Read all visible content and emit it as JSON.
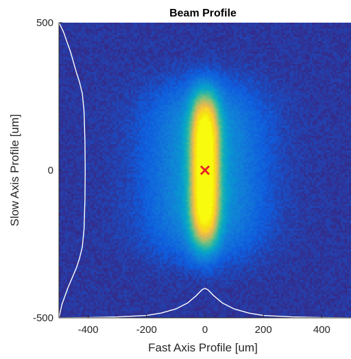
{
  "chart_data": {
    "type": "heatmap",
    "title": "Beam Profile",
    "xlabel": "Fast Axis Profile [um]",
    "ylabel": "Slow Axis Profile [um]",
    "xlim": [
      -500,
      500
    ],
    "ylim": [
      -500,
      500
    ],
    "x_ticks": [
      -400,
      -200,
      0,
      200,
      400
    ],
    "y_ticks": [
      -500,
      0,
      500
    ],
    "x_tick_labels": [
      "-400",
      "-200",
      "0",
      "200",
      "400"
    ],
    "y_tick_labels": [
      "-500",
      "0",
      "500"
    ],
    "grid": false,
    "colormap": "parula",
    "colors": {
      "background": "#2a2f8f",
      "profile_line": "#ffffff",
      "centroid_marker": "#e8202a"
    },
    "intensity_model": {
      "core_center": [
        0,
        0
      ],
      "core_sigma_x_um": 34,
      "core_sigma_y_um": 210,
      "halo_sigma_x_um": 130,
      "halo_sigma_y_um": 240,
      "halo_relative_level": 0.28
    },
    "centroid": {
      "x": 0,
      "y": 0,
      "marker": "x"
    },
    "fast_axis_profile": {
      "baseline_y_um": -500,
      "points": [
        [
          -500,
          -500
        ],
        [
          -400,
          -499
        ],
        [
          -300,
          -497
        ],
        [
          -200,
          -492
        ],
        [
          -150,
          -484
        ],
        [
          -100,
          -470
        ],
        [
          -60,
          -450
        ],
        [
          -30,
          -425
        ],
        [
          -10,
          -405
        ],
        [
          0,
          -400
        ],
        [
          10,
          -405
        ],
        [
          30,
          -425
        ],
        [
          60,
          -450
        ],
        [
          100,
          -470
        ],
        [
          150,
          -484
        ],
        [
          200,
          -492
        ],
        [
          300,
          -497
        ],
        [
          400,
          -499
        ],
        [
          500,
          -500
        ]
      ]
    },
    "slow_axis_profile": {
      "baseline_x_um": -500,
      "points": [
        [
          -500,
          -500
        ],
        [
          -490,
          -455
        ],
        [
          -470,
          -400
        ],
        [
          -440,
          -330
        ],
        [
          -430,
          -300
        ],
        [
          -420,
          -260
        ],
        [
          -414,
          -200
        ],
        [
          -411,
          -100
        ],
        [
          -410,
          0
        ],
        [
          -411,
          100
        ],
        [
          -414,
          200
        ],
        [
          -420,
          260
        ],
        [
          -430,
          300
        ],
        [
          -440,
          330
        ],
        [
          -460,
          400
        ],
        [
          -485,
          470
        ],
        [
          -500,
          500
        ]
      ]
    }
  }
}
